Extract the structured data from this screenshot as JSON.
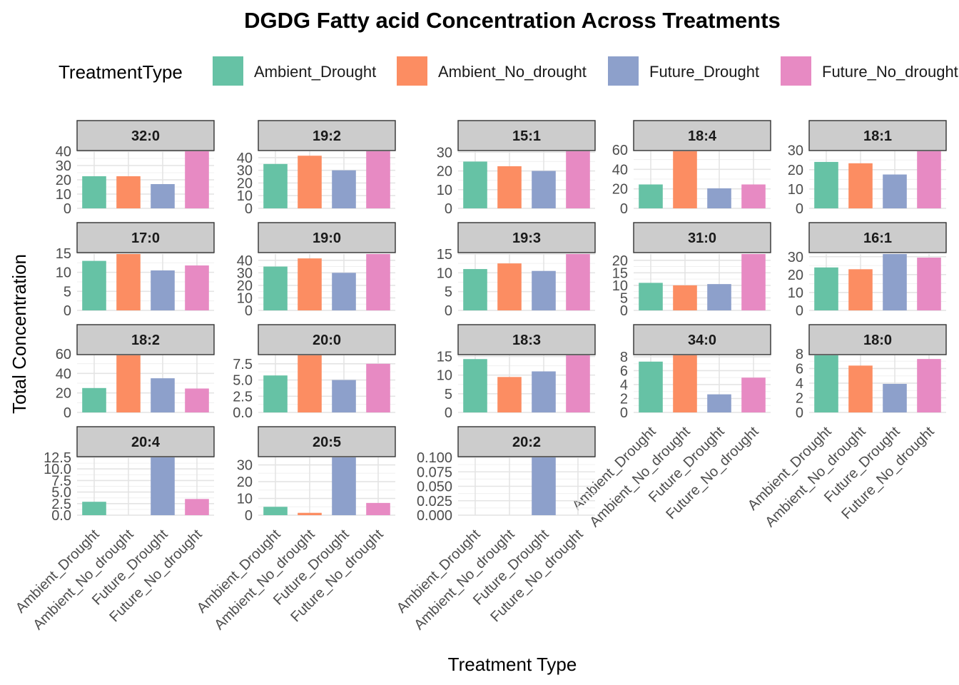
{
  "chart_data": {
    "type": "bar",
    "title": "DGDG  Fatty acid Concentration Across Treatments",
    "xlabel": "Treatment Type",
    "ylabel": "Total Concentration",
    "legend": {
      "title": "TreatmentType",
      "placement": "top",
      "entries": [
        "Ambient_Drought",
        "Ambient_No_drought",
        "Future_Drought",
        "Future_No_drought"
      ]
    },
    "categories": [
      "Ambient_Drought",
      "Ambient_No_drought",
      "Future_Drought",
      "Future_No_drought"
    ],
    "colors": [
      "#66C2A5",
      "#FC8D62",
      "#8DA0CB",
      "#E78AC3"
    ],
    "grid": true,
    "layout": "facet-wrap 5 columns, free y scales",
    "panels": [
      {
        "name": "32:0",
        "values": [
          22.5,
          22.5,
          17,
          40
        ],
        "ylim": [
          0,
          40
        ],
        "ticks": [
          0,
          10,
          20,
          30,
          40
        ],
        "tick_labels": [
          "0",
          "10",
          "20",
          "30",
          "40"
        ]
      },
      {
        "name": "19:2",
        "values": [
          35,
          41.5,
          30,
          45
        ],
        "ylim": [
          0,
          45
        ],
        "ticks": [
          0,
          10,
          20,
          30,
          40
        ],
        "tick_labels": [
          "0",
          "10",
          "20",
          "30",
          "40"
        ]
      },
      {
        "name": "15:1",
        "values": [
          25,
          22.5,
          20,
          30.5
        ],
        "ylim": [
          0,
          30.5
        ],
        "ticks": [
          0,
          10,
          20,
          30
        ],
        "tick_labels": [
          "0",
          "10",
          "20",
          "30"
        ]
      },
      {
        "name": "18:4",
        "values": [
          24.5,
          58.5,
          20.5,
          24.5
        ],
        "ylim": [
          0,
          58.5
        ],
        "ticks": [
          0,
          20,
          40,
          60
        ],
        "tick_labels": [
          "0",
          "20",
          "40",
          "60"
        ]
      },
      {
        "name": "18:1",
        "values": [
          24,
          23.3,
          17.5,
          29.5
        ],
        "ylim": [
          0,
          29.5
        ],
        "ticks": [
          0,
          10,
          20,
          30
        ],
        "tick_labels": [
          "0",
          "10",
          "20",
          "30"
        ]
      },
      {
        "name": "17:0",
        "values": [
          13,
          14.8,
          10.5,
          11.8
        ],
        "ylim": [
          0,
          14.8
        ],
        "ticks": [
          0,
          5,
          10,
          15
        ],
        "tick_labels": [
          "0",
          "5",
          "10",
          "15"
        ]
      },
      {
        "name": "19:0",
        "values": [
          35,
          41.5,
          30,
          45
        ],
        "ylim": [
          0,
          45
        ],
        "ticks": [
          0,
          10,
          20,
          30,
          40
        ],
        "tick_labels": [
          "0",
          "10",
          "20",
          "30",
          "40"
        ]
      },
      {
        "name": "19:3",
        "values": [
          11,
          12.5,
          10.5,
          15
        ],
        "ylim": [
          0,
          15
        ],
        "ticks": [
          0,
          5,
          10,
          15
        ],
        "tick_labels": [
          "0",
          "5",
          "10",
          "15"
        ]
      },
      {
        "name": "31:0",
        "values": [
          11,
          10,
          10.5,
          22.5
        ],
        "ylim": [
          0,
          22.5
        ],
        "ticks": [
          0,
          5,
          10,
          15,
          20
        ],
        "tick_labels": [
          "0",
          "5",
          "10",
          "15",
          "20"
        ]
      },
      {
        "name": "16:1",
        "values": [
          24,
          23,
          31.5,
          29.5
        ],
        "ylim": [
          0,
          31.5
        ],
        "ticks": [
          0,
          10,
          20,
          30
        ],
        "tick_labels": [
          "0",
          "10",
          "20",
          "30"
        ]
      },
      {
        "name": "18:2",
        "values": [
          25,
          58.5,
          35,
          24.5
        ],
        "ylim": [
          0,
          58.5
        ],
        "ticks": [
          0,
          20,
          40,
          60
        ],
        "tick_labels": [
          "0",
          "20",
          "40",
          "60"
        ]
      },
      {
        "name": "20:0",
        "values": [
          5.7,
          8.8,
          5,
          7.5
        ],
        "ylim": [
          0,
          8.8
        ],
        "ticks": [
          0,
          2.5,
          5,
          7.5
        ],
        "tick_labels": [
          "0.0",
          "2.5",
          "5.0",
          "7.5"
        ]
      },
      {
        "name": "18:3",
        "values": [
          14.3,
          9.5,
          11,
          15.3
        ],
        "ylim": [
          0,
          15.3
        ],
        "ticks": [
          0,
          5,
          10,
          15
        ],
        "tick_labels": [
          "0",
          "5",
          "10",
          "15"
        ]
      },
      {
        "name": "34:0",
        "values": [
          7.3,
          8.2,
          2.6,
          5
        ],
        "ylim": [
          0,
          8.2
        ],
        "ticks": [
          0,
          2,
          4,
          6,
          8
        ],
        "tick_labels": [
          "0",
          "2",
          "4",
          "6",
          "8"
        ]
      },
      {
        "name": "18:0",
        "values": [
          7.8,
          6.4,
          3.9,
          7.3
        ],
        "ylim": [
          0,
          7.8
        ],
        "ticks": [
          0,
          2,
          4,
          6,
          8
        ],
        "tick_labels": [
          "0",
          "2",
          "4",
          "6",
          "8"
        ]
      },
      {
        "name": "20:4",
        "values": [
          2.9,
          0,
          12.5,
          3.5
        ],
        "ylim": [
          0,
          12.5
        ],
        "ticks": [
          0,
          2.5,
          5,
          7.5,
          10,
          12.5
        ],
        "tick_labels": [
          "0.0",
          "2.5",
          "5.0",
          "7.5",
          "10.0",
          "12.5"
        ]
      },
      {
        "name": "20:5",
        "values": [
          5,
          1.4,
          34.5,
          7.3
        ],
        "ylim": [
          0,
          34.5
        ],
        "ticks": [
          0,
          10,
          20,
          30
        ],
        "tick_labels": [
          "0",
          "10",
          "20",
          "30"
        ]
      },
      {
        "name": "20:2",
        "values": [
          0,
          0,
          0.1,
          0
        ],
        "ylim": [
          0,
          0.1
        ],
        "ticks": [
          0,
          0.025,
          0.05,
          0.075,
          0.1
        ],
        "tick_labels": [
          "0.000",
          "0.025",
          "0.050",
          "0.075",
          "0.100"
        ]
      }
    ]
  }
}
